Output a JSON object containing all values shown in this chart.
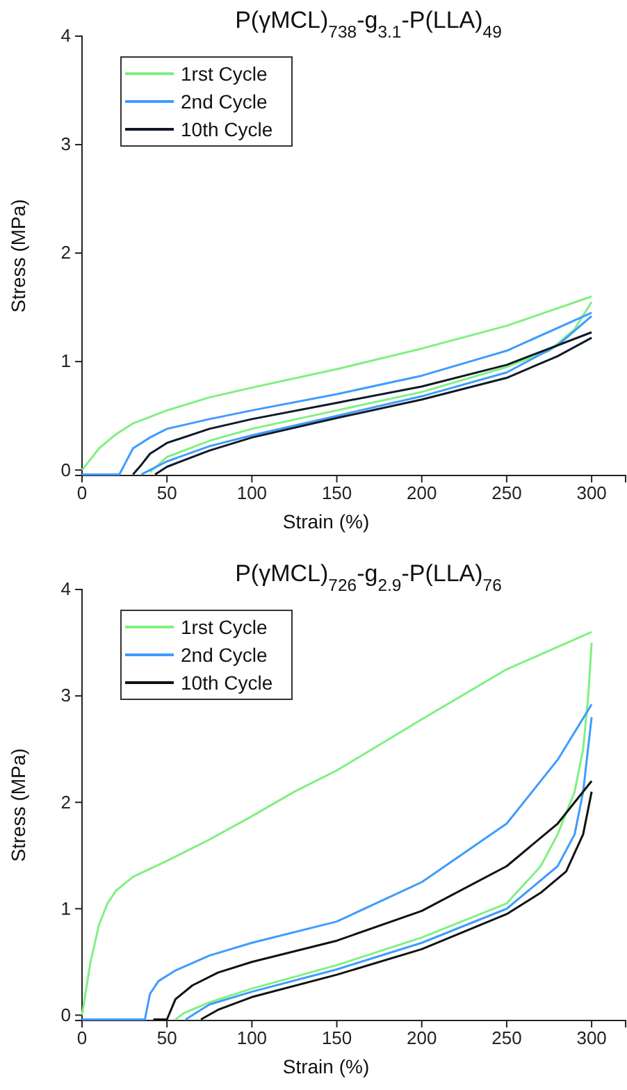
{
  "chart_data": [
    {
      "type": "line",
      "title": "P(γMCL)$_{738}$-g$_{3.1}$-P(LLA)$_{49}$",
      "xlabel": "Strain (%)",
      "ylabel": "Stress (MPa)",
      "xlim": [
        0,
        320
      ],
      "ylim": [
        -0.05,
        4
      ],
      "xticks": [
        0,
        50,
        100,
        150,
        200,
        250,
        300
      ],
      "yticks": [
        0,
        1,
        2,
        3,
        4
      ],
      "legend": "top left",
      "grid": false,
      "marker": "none",
      "line_style": "solid",
      "series": [
        {
          "name": "1rst Cycle",
          "color": "#80f080",
          "x": [
            0,
            5,
            10,
            20,
            30,
            50,
            75,
            100,
            150,
            200,
            250,
            300
          ],
          "values": [
            0,
            0.1,
            0.2,
            0.33,
            0.43,
            0.55,
            0.67,
            0.76,
            0.93,
            1.12,
            1.33,
            1.6
          ]
        },
        {
          "color": "#80f080",
          "x": [
            300,
            290,
            275,
            250,
            200,
            150,
            100,
            75,
            50,
            40
          ],
          "values": [
            1.55,
            1.3,
            1.1,
            0.95,
            0.72,
            0.55,
            0.38,
            0.27,
            0.12,
            -0.02
          ]
        },
        {
          "name": "2nd Cycle",
          "color": "#3f9bff",
          "x": [
            0,
            22,
            25,
            30,
            40,
            50,
            75,
            100,
            150,
            200,
            250,
            300
          ],
          "values": [
            -0.04,
            -0.04,
            0.05,
            0.2,
            0.3,
            0.38,
            0.47,
            0.55,
            0.7,
            0.87,
            1.1,
            1.45
          ]
        },
        {
          "color": "#3f9bff",
          "x": [
            300,
            280,
            250,
            200,
            150,
            100,
            75,
            50,
            40,
            35
          ],
          "values": [
            1.42,
            1.15,
            0.9,
            0.68,
            0.5,
            0.32,
            0.22,
            0.08,
            0,
            -0.04
          ]
        },
        {
          "name": "10th Cycle",
          "color": "#111827",
          "x": [
            30,
            35,
            40,
            50,
            75,
            100,
            150,
            200,
            250,
            300
          ],
          "values": [
            -0.04,
            0.05,
            0.15,
            0.25,
            0.38,
            0.47,
            0.62,
            0.77,
            0.97,
            1.27
          ]
        },
        {
          "color": "#111827",
          "x": [
            300,
            280,
            250,
            200,
            150,
            100,
            75,
            50,
            43
          ],
          "values": [
            1.22,
            1.05,
            0.85,
            0.65,
            0.48,
            0.3,
            0.18,
            0.03,
            -0.04
          ]
        }
      ]
    },
    {
      "type": "line",
      "title": "P(γMCL)$_{726}$-g$_{2.9}$-P(LLA)$_{76}$",
      "xlabel": "Strain (%)",
      "ylabel": "Stress (MPa)",
      "xlim": [
        0,
        320
      ],
      "ylim": [
        -0.05,
        4
      ],
      "xticks": [
        0,
        50,
        100,
        150,
        200,
        250,
        300
      ],
      "yticks": [
        0,
        1,
        2,
        3,
        4
      ],
      "legend": "top left",
      "grid": false,
      "marker": "none",
      "line_style": "solid",
      "series": [
        {
          "name": "1rst Cycle",
          "color": "#80f080",
          "x": [
            0,
            3,
            5,
            10,
            15,
            20,
            30,
            50,
            75,
            100,
            125,
            150,
            200,
            250,
            300
          ],
          "values": [
            0,
            0.3,
            0.5,
            0.85,
            1.05,
            1.17,
            1.3,
            1.45,
            1.65,
            1.87,
            2.1,
            2.3,
            2.78,
            3.25,
            3.6
          ]
        },
        {
          "color": "#80f080",
          "x": [
            300,
            298,
            295,
            290,
            280,
            270,
            250,
            200,
            150,
            100,
            75,
            60,
            55
          ],
          "values": [
            3.5,
            3.0,
            2.5,
            2.1,
            1.7,
            1.4,
            1.05,
            0.73,
            0.47,
            0.25,
            0.12,
            0.02,
            -0.04
          ]
        },
        {
          "name": "2nd Cycle",
          "color": "#3f9bff",
          "x": [
            0,
            37,
            40,
            45,
            55,
            75,
            100,
            150,
            200,
            250,
            280,
            300
          ],
          "values": [
            -0.04,
            -0.04,
            0.2,
            0.32,
            0.42,
            0.56,
            0.68,
            0.88,
            1.25,
            1.8,
            2.4,
            2.92
          ]
        },
        {
          "color": "#3f9bff",
          "x": [
            300,
            295,
            290,
            280,
            250,
            200,
            150,
            100,
            75,
            61
          ],
          "values": [
            2.8,
            2.1,
            1.7,
            1.4,
            1.0,
            0.68,
            0.43,
            0.22,
            0.1,
            -0.04
          ]
        },
        {
          "name": "10th Cycle",
          "color": "#111111",
          "x": [
            42,
            50,
            55,
            65,
            80,
            100,
            150,
            200,
            250,
            280,
            300
          ],
          "values": [
            -0.04,
            -0.04,
            0.15,
            0.28,
            0.4,
            0.5,
            0.7,
            0.98,
            1.4,
            1.8,
            2.2
          ]
        },
        {
          "color": "#111111",
          "x": [
            300,
            295,
            285,
            270,
            250,
            200,
            150,
            100,
            80,
            70
          ],
          "values": [
            2.1,
            1.7,
            1.35,
            1.15,
            0.95,
            0.62,
            0.38,
            0.17,
            0.05,
            -0.04
          ]
        }
      ]
    }
  ]
}
